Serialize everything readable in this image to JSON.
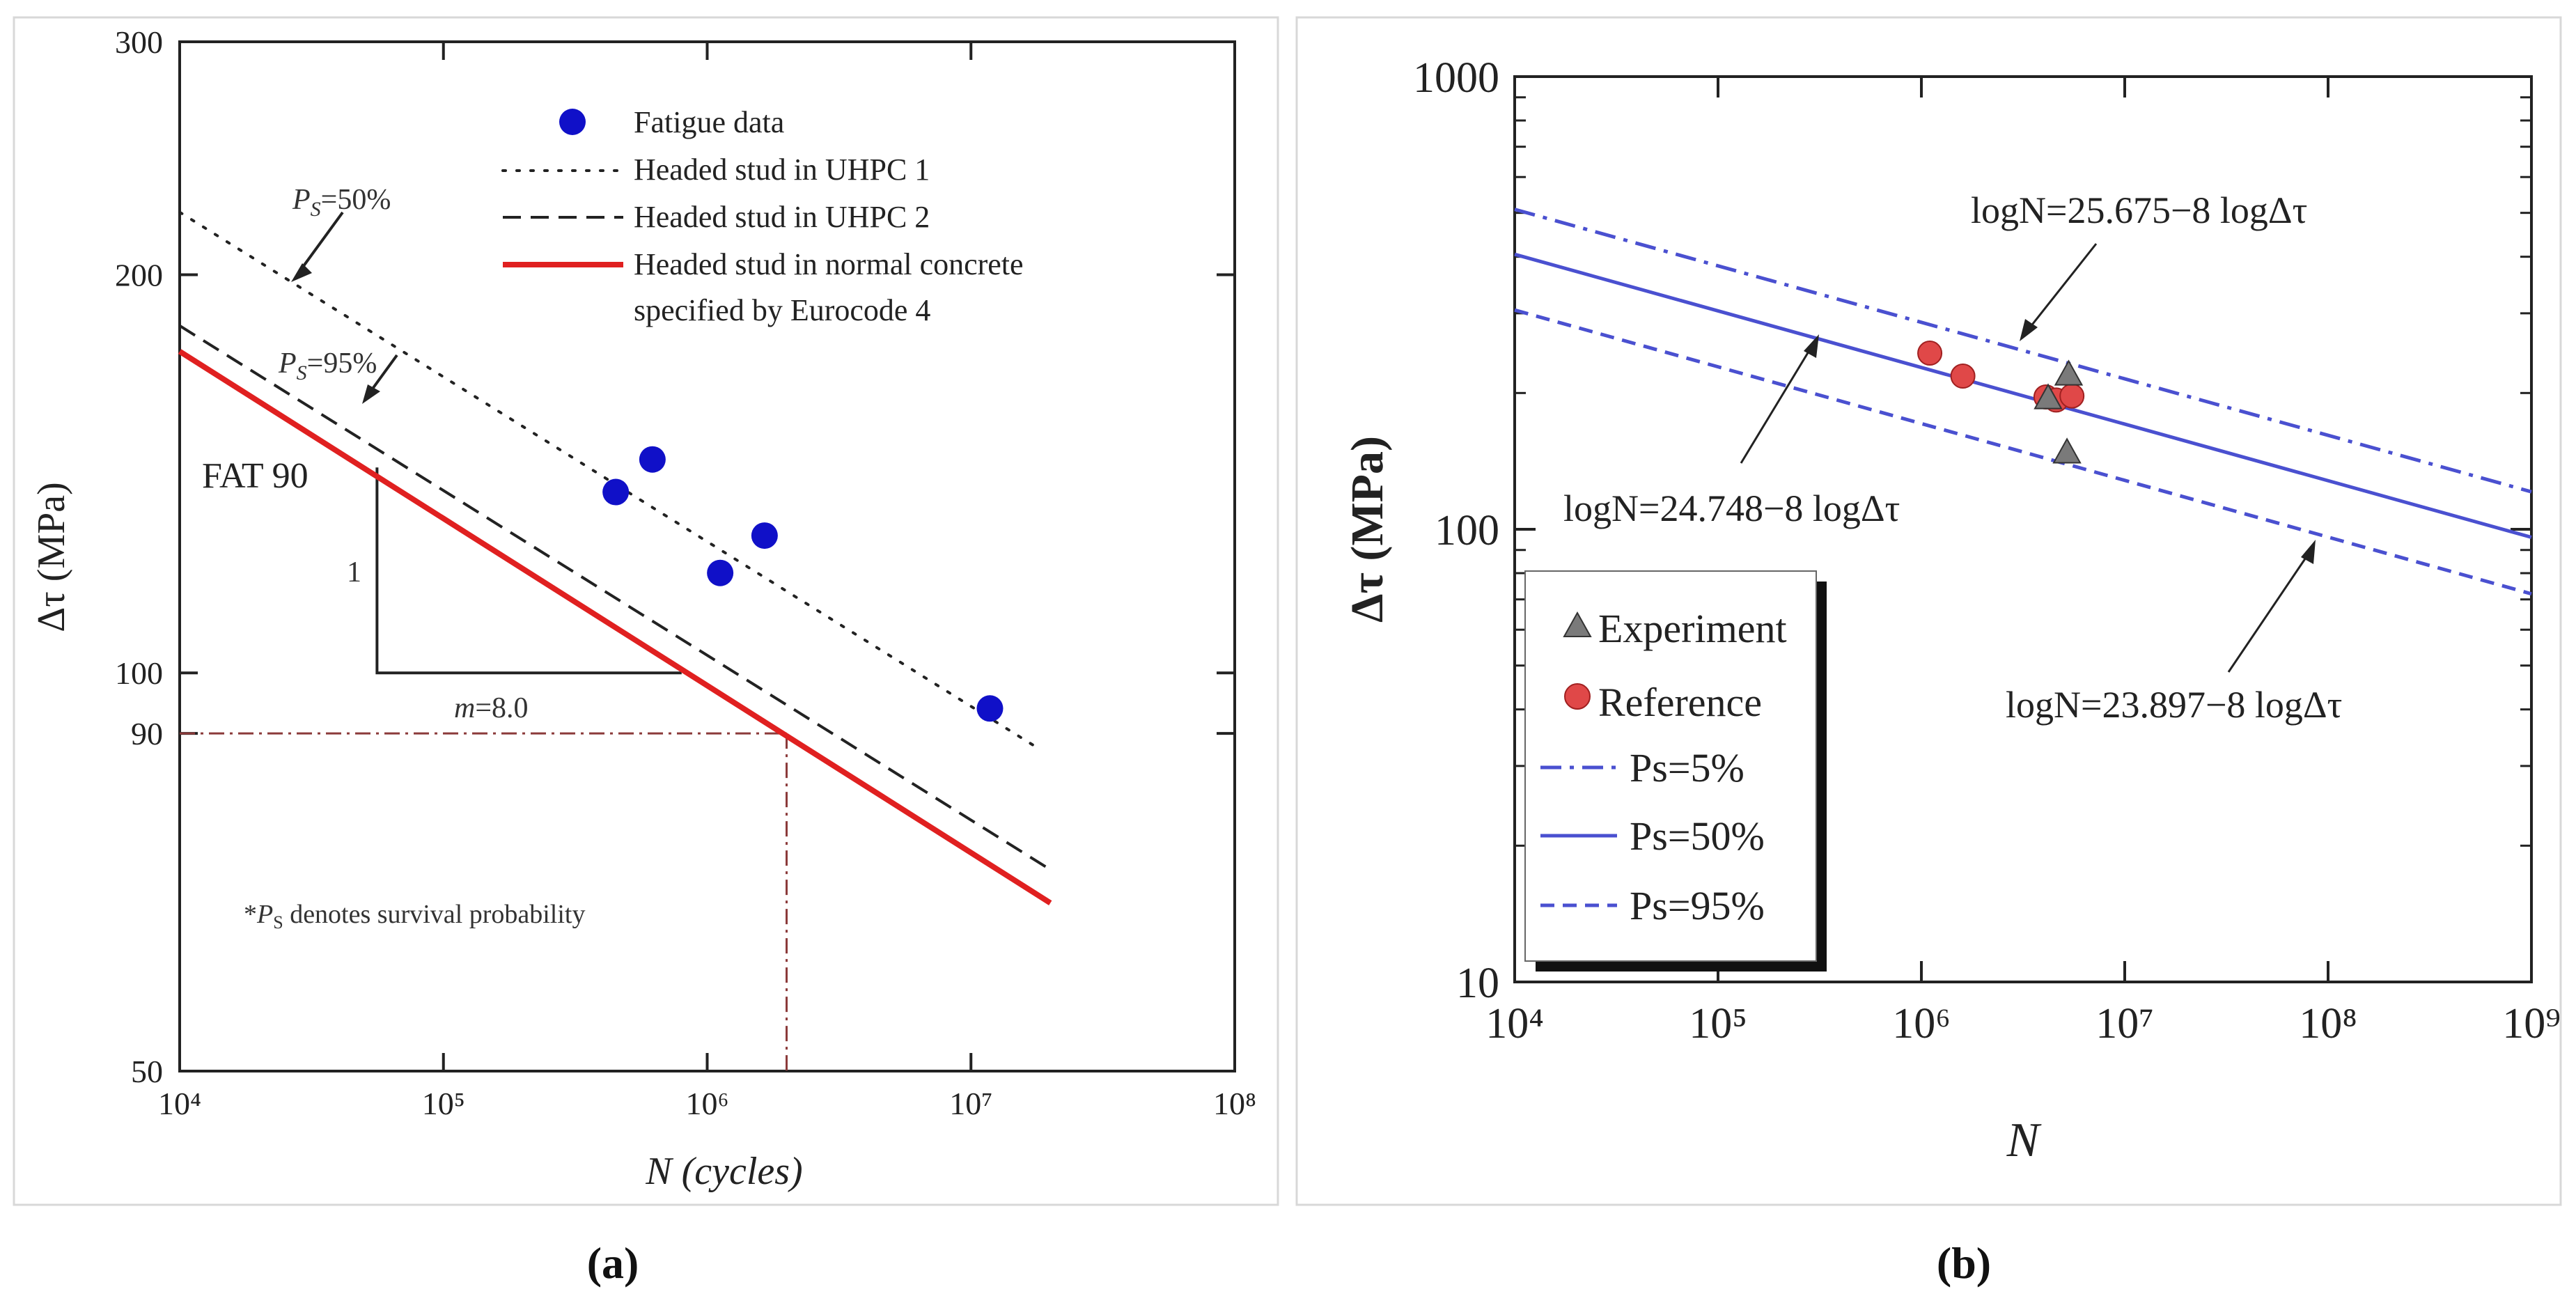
{
  "panel_labels": [
    "(a)",
    "(b)"
  ],
  "chart_data": [
    {
      "type": "scatter",
      "xlabel": "N (cycles)",
      "ylabel": "Δτ (MPa)",
      "xscale": "log",
      "yscale": "log",
      "xlim": [
        10000,
        100000000
      ],
      "ylim": [
        50,
        300
      ],
      "x_ticks": [
        "10⁴",
        "10⁵",
        "10⁶",
        "10⁷",
        "10⁸"
      ],
      "y_ticks": [
        "300",
        "200",
        "100",
        "90",
        "50"
      ],
      "legend_position": "top-right",
      "legend": [
        "Fatigue data",
        "Headed stud in UHPC 1",
        "Headed stud in UHPC 2",
        "Headed stud in normal concrete",
        "specified by Eurocode 4"
      ],
      "colors": {
        "data": "#1010c8",
        "eurocode": "#e02020",
        "lines": "#222222",
        "reference": "#8b3a3a"
      },
      "series": [
        {
          "name": "Fatigue data",
          "style": "points",
          "points": [
            [
              450000,
              137
            ],
            [
              620000,
              145
            ],
            [
              1120000,
              119
            ],
            [
              1650000,
              127
            ],
            [
              11800000,
              94
            ]
          ]
        },
        {
          "name": "Headed stud in UHPC 1",
          "style": "dotted",
          "line": [
            [
              10000,
              223
            ],
            [
              17500000,
              88
            ]
          ]
        },
        {
          "name": "Headed stud in UHPC 2",
          "style": "dashed",
          "line": [
            [
              10000,
              183
            ],
            [
              20000000,
              71
            ]
          ]
        },
        {
          "name": "Headed stud in normal concrete specified by Eurocode 4",
          "style": "solid",
          "line": [
            [
              10000,
              175
            ],
            [
              20000000,
              67
            ]
          ]
        }
      ],
      "reference_lines": {
        "x": 2000000,
        "y": 90
      },
      "slope_triangle": {
        "x_start": 56000,
        "x_end": 800000,
        "y_bottom": 100,
        "y_top": 143
      },
      "annotations": {
        "ps50": "=50%",
        "ps95": "=95%",
        "ps_symbol": "P",
        "ps_sub": "S",
        "fat": "FAT 90",
        "rise": "1",
        "slope_m": "m",
        "slope_val": "=8.0",
        "note_star": "*",
        "note_text": " denotes survival probability"
      }
    },
    {
      "type": "line",
      "xlabel": "N",
      "ylabel": "Δτ (MPa)",
      "xscale": "log",
      "yscale": "log",
      "xlim": [
        10000,
        1000000000
      ],
      "ylim": [
        10,
        1000
      ],
      "x_ticks": [
        "10⁴",
        "10⁵",
        "10⁶",
        "10⁷",
        "10⁸",
        "10⁹"
      ],
      "y_ticks": [
        "1000",
        "100",
        "10"
      ],
      "legend_position": "bottom-left",
      "legend": [
        "Experiment",
        "Reference",
        "Ps=5%",
        "Ps=50%",
        "Ps=95%"
      ],
      "colors": {
        "lines": "#4a50d0",
        "experiment": "#7a7a7a",
        "reference": "#e04848"
      },
      "series": [
        {
          "name": "Experiment",
          "style": "triangles",
          "points": [
            [
              4200000,
              195
            ],
            [
              5300000,
              220
            ],
            [
              5200000,
              148
            ]
          ]
        },
        {
          "name": "Reference",
          "style": "circles",
          "points": [
            [
              1100000,
              245
            ],
            [
              1600000,
              218
            ],
            [
              4100000,
              196
            ],
            [
              4600000,
              193
            ],
            [
              5500000,
              197
            ]
          ]
        },
        {
          "name": "Ps=5%",
          "style": "dashdot",
          "line": [
            [
              10000,
              509
            ],
            [
              1000000000,
              121
            ]
          ]
        },
        {
          "name": "Ps=50%",
          "style": "solid",
          "line": [
            [
              10000,
              405
            ],
            [
              1000000000,
              96
            ]
          ]
        },
        {
          "name": "Ps=95%",
          "style": "dashed",
          "line": [
            [
              10000,
              305
            ],
            [
              1000000000,
              72
            ]
          ]
        }
      ],
      "equations": [
        "logN=25.675−8 logΔτ",
        "logN=24.748−8 logΔτ",
        "logN=23.897−8 logΔτ"
      ]
    }
  ]
}
